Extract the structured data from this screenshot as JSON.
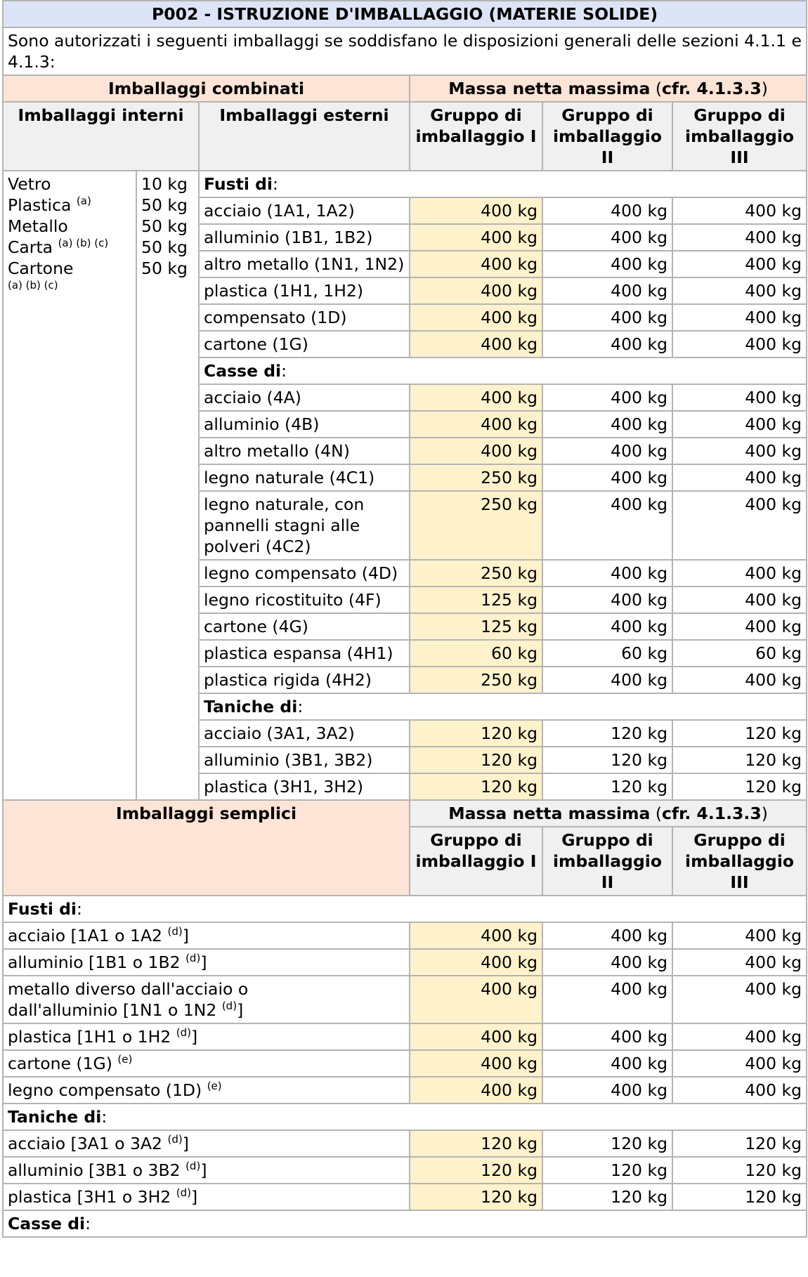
{
  "title": "P002 - ISTRUZIONE D'IMBALLAGGIO (MATERIE SOLIDE)",
  "intro": "Sono autorizzati i seguenti imballaggi se soddisfano le disposizioni generali delle sezioni 4.1.1 e 4.1.3:",
  "combined": {
    "header": "Imballaggi combinati",
    "mass_label": "Massa netta massima",
    "mass_ref": "cfr. 4.1.3.3",
    "inner_header": "Imballaggi interni",
    "outer_header": "Imballaggi esterni",
    "groups": [
      "Gruppo di imballaggio I",
      "Gruppo di imballaggio II",
      "Gruppo di imballaggio III"
    ],
    "inner_items": [
      {
        "name": "Vetro",
        "note": "",
        "kg": "10 kg"
      },
      {
        "name": "Plastica",
        "note": "(a)",
        "kg": "50 kg"
      },
      {
        "name": "Metallo",
        "note": "",
        "kg": "50 kg"
      },
      {
        "name": "Carta",
        "note": "(a) (b) (c)",
        "kg": "50 kg"
      },
      {
        "name": "Cartone",
        "note": "(a) (b) (c)",
        "kg": "50 kg"
      }
    ],
    "sections": [
      {
        "label": "Fusti di",
        "rows": [
          {
            "name": "acciaio (1A1, 1A2)",
            "v": [
              "400 kg",
              "400 kg",
              "400 kg"
            ]
          },
          {
            "name": "alluminio (1B1, 1B2)",
            "v": [
              "400 kg",
              "400 kg",
              "400 kg"
            ]
          },
          {
            "name": "altro metallo (1N1, 1N2)",
            "v": [
              "400 kg",
              "400 kg",
              "400 kg"
            ]
          },
          {
            "name": "plastica (1H1, 1H2)",
            "v": [
              "400 kg",
              "400 kg",
              "400 kg"
            ]
          },
          {
            "name": "compensato (1D)",
            "v": [
              "400 kg",
              "400 kg",
              "400 kg"
            ]
          },
          {
            "name": "cartone (1G)",
            "v": [
              "400 kg",
              "400 kg",
              "400 kg"
            ]
          }
        ]
      },
      {
        "label": "Casse di",
        "rows": [
          {
            "name": "acciaio (4A)",
            "v": [
              "400 kg",
              "400 kg",
              "400 kg"
            ]
          },
          {
            "name": "alluminio (4B)",
            "v": [
              "400 kg",
              "400 kg",
              "400 kg"
            ]
          },
          {
            "name": "altro metallo (4N)",
            "v": [
              "400 kg",
              "400 kg",
              "400 kg"
            ]
          },
          {
            "name": "legno naturale (4C1)",
            "v": [
              "250 kg",
              "400 kg",
              "400 kg"
            ]
          },
          {
            "name": "legno naturale, con pannelli stagni alle polveri (4C2)",
            "v": [
              "250 kg",
              "400 kg",
              "400 kg"
            ]
          },
          {
            "name": "legno compensato (4D)",
            "v": [
              "250 kg",
              "400 kg",
              "400 kg"
            ]
          },
          {
            "name": "legno ricostituito (4F)",
            "v": [
              "125 kg",
              "400 kg",
              "400 kg"
            ]
          },
          {
            "name": "cartone (4G)",
            "v": [
              "125 kg",
              "400 kg",
              "400 kg"
            ]
          },
          {
            "name": "plastica espansa (4H1)",
            "v": [
              "60 kg",
              "60 kg",
              "60 kg"
            ]
          },
          {
            "name": "plastica rigida (4H2)",
            "v": [
              "250 kg",
              "400 kg",
              "400 kg"
            ]
          }
        ]
      },
      {
        "label": "Taniche di",
        "rows": [
          {
            "name": "acciaio (3A1, 3A2)",
            "v": [
              "120 kg",
              "120 kg",
              "120 kg"
            ]
          },
          {
            "name": "alluminio (3B1, 3B2)",
            "v": [
              "120 kg",
              "120 kg",
              "120 kg"
            ]
          },
          {
            "name": "plastica (3H1, 3H2)",
            "v": [
              "120 kg",
              "120 kg",
              "120 kg"
            ]
          }
        ]
      }
    ]
  },
  "single": {
    "header": "Imballaggi semplici",
    "mass_label": "Massa netta massima",
    "mass_ref": "cfr. 4.1.3.3",
    "groups": [
      "Gruppo di imballaggio I",
      "Gruppo di imballaggio II",
      "Gruppo di imballaggio III"
    ],
    "sections": [
      {
        "label": "Fusti di",
        "rows": [
          {
            "name": "acciaio [1A1 o 1A2",
            "note": "(d)",
            "close": "]",
            "v": [
              "400 kg",
              "400 kg",
              "400 kg"
            ]
          },
          {
            "name": "alluminio [1B1 o 1B2",
            "note": "(d)",
            "close": "]",
            "v": [
              "400 kg",
              "400 kg",
              "400 kg"
            ]
          },
          {
            "name": "metallo diverso dall'acciaio o dall'alluminio [1N1 o 1N2",
            "note": "(d)",
            "close": "]",
            "v": [
              "400 kg",
              "400 kg",
              "400 kg"
            ]
          },
          {
            "name": "plastica [1H1 o 1H2",
            "note": "(d)",
            "close": "]",
            "v": [
              "400 kg",
              "400 kg",
              "400 kg"
            ]
          },
          {
            "name": "cartone (1G)",
            "note": "(e)",
            "close": "",
            "v": [
              "400 kg",
              "400 kg",
              "400 kg"
            ]
          },
          {
            "name": "legno compensato (1D)",
            "note": "(e)",
            "close": "",
            "v": [
              "400 kg",
              "400 kg",
              "400 kg"
            ]
          }
        ]
      },
      {
        "label": "Taniche di",
        "rows": [
          {
            "name": "acciaio [3A1 o 3A2",
            "note": "(d)",
            "close": "]",
            "v": [
              "120 kg",
              "120 kg",
              "120 kg"
            ]
          },
          {
            "name": "alluminio [3B1 o 3B2",
            "note": "(d)",
            "close": "]",
            "v": [
              "120 kg",
              "120 kg",
              "120 kg"
            ]
          },
          {
            "name": "plastica [3H1 o 3H2",
            "note": "(d)",
            "close": "]",
            "v": [
              "120 kg",
              "120 kg",
              "120 kg"
            ]
          }
        ]
      },
      {
        "label": "Casse di",
        "rows": []
      }
    ]
  }
}
